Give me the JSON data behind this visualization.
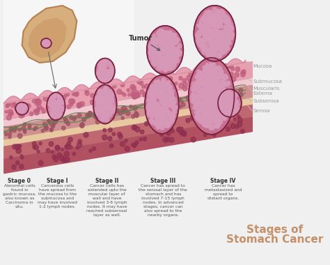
{
  "bg_color": "#f0f0f0",
  "title_line1": "Stages of",
  "title_line2": "Stomach Cancer",
  "title_color": "#c4906a",
  "title_fontsize": 11,
  "layer_label_color": "#999999",
  "stage_label_color": "#333333",
  "stage_desc_color": "#555555",
  "tumor_fill": "#c87090",
  "tumor_dark": "#7a2040",
  "tumor_cell_color": "#d898b8",
  "mucosa_color": "#e8a0b0",
  "mucosa_cell": "#c06080",
  "submucosa_color": "#f2c8d0",
  "muscularis_color": "#d09090",
  "muscularis_cell": "#a05060",
  "subserosa_color": "#e8c8a0",
  "serosa_color": "#c06870",
  "serosa_cell": "#903050",
  "nerve_color": "#608050",
  "wall_border": "#a06070",
  "layer_labels": [
    "Mucosa",
    "Submucosa",
    "Muscularis\nExterna",
    "Subserosa",
    "Serosa"
  ],
  "tumor_label": "Tumor",
  "stages": [
    {
      "name": "Stage 0",
      "desc": "Abnormal cells\nfound in\ngastric mucosa,\nalso known as\nCarcinoma in\nsitu."
    },
    {
      "name": "Stage I",
      "desc": "Cancerous cells\nhave spread from\nthe mucosa to the\nsubmucosa and\nmay have involved\n1-2 lymph nodes."
    },
    {
      "name": "Stage II",
      "desc": "Cancer cells has\nextended upto the\nmuscular layer of\nwall and have\ninvolved 3-6 lymph\nnodes. It may have\nreached subserosal\nlayer as well."
    },
    {
      "name": "Stage III",
      "desc": "Cancer has spread to\nthe serosal layer of the\nstomach and has\ninvolved 7-15 lymph\nnodes. In advanced\nstages, cancer can\nalso spread to the\nnearby organs."
    },
    {
      "name": "Stage IV",
      "desc": "Cancer has\nmetastasized and\nspread to\ndistant organs."
    }
  ]
}
